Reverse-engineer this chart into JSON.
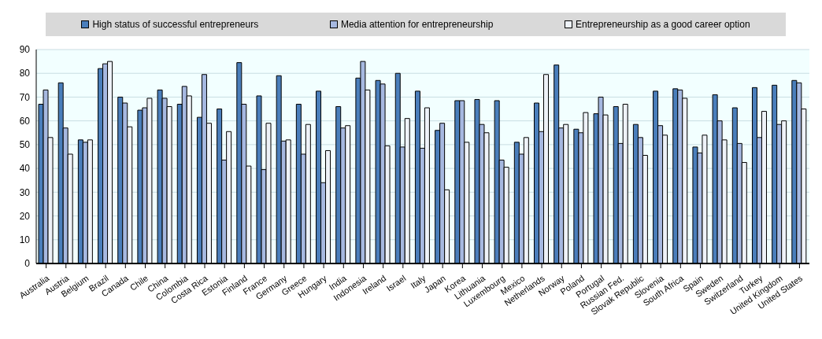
{
  "chart_data": {
    "type": "bar",
    "categories": [
      "Australia",
      "Austria",
      "Belgium",
      "Brazil",
      "Canada",
      "Chile",
      "China",
      "Colombia",
      "Costa Rica",
      "Estonia",
      "Finland",
      "France",
      "Germany",
      "Greece",
      "Hungary",
      "India",
      "Indonesia",
      "Ireland",
      "Israel",
      "Italy",
      "Japan",
      "Korea",
      "Lithuania",
      "Luxembourg",
      "Mexico",
      "Netherlands",
      "Norway",
      "Poland",
      "Portugal",
      "Russian Fed.",
      "Slovak Republic",
      "Slovenia",
      "South Africa",
      "Spain",
      "Sweden",
      "Switzerland",
      "Turkey",
      "United Kingdom",
      "United States"
    ],
    "series": [
      {
        "name": "High status of successful entrepreneurs",
        "color": "#4a7ebb",
        "values": [
          67,
          76,
          52,
          82,
          70,
          64.5,
          73,
          67,
          61.5,
          65,
          84.5,
          70.5,
          79,
          67,
          72.5,
          66,
          78,
          77,
          80,
          72.5,
          56,
          68.5,
          69,
          68.5,
          51,
          67.5,
          83.5,
          56.5,
          63,
          66,
          58.5,
          72.5,
          73.5,
          49,
          71,
          65.5,
          74,
          75,
          77
        ]
      },
      {
        "name": "Media attention for entrepreneurship",
        "color": "#a6b8e0",
        "values": [
          73,
          57,
          51,
          84,
          67.5,
          65.5,
          69.5,
          74.5,
          79.5,
          43.5,
          67,
          39.5,
          51.5,
          46,
          34,
          57,
          85,
          75.5,
          49,
          48.5,
          59,
          68.5,
          58.5,
          43.5,
          46,
          55.5,
          57,
          55,
          70,
          50.5,
          53,
          58,
          73,
          46.5,
          60,
          50.5,
          53,
          58.5,
          76
        ]
      },
      {
        "name": "Entrepreneurship as a good career option",
        "color": "#eef2f8",
        "values": [
          53,
          46,
          52,
          85,
          57.5,
          69.5,
          66,
          70.5,
          59,
          55.5,
          41,
          59,
          52,
          58.5,
          47.5,
          58,
          73,
          49.5,
          61,
          65.5,
          31,
          51,
          55,
          40.5,
          53,
          79.5,
          58.5,
          63.5,
          62.5,
          67,
          45.5,
          54,
          69.5,
          54,
          52,
          42.5,
          64,
          60,
          65
        ]
      }
    ],
    "ylim": [
      0,
      90
    ],
    "yticks": [
      0,
      10,
      20,
      30,
      40,
      50,
      60,
      70,
      80,
      90
    ],
    "grid": "y",
    "legend": "top"
  }
}
